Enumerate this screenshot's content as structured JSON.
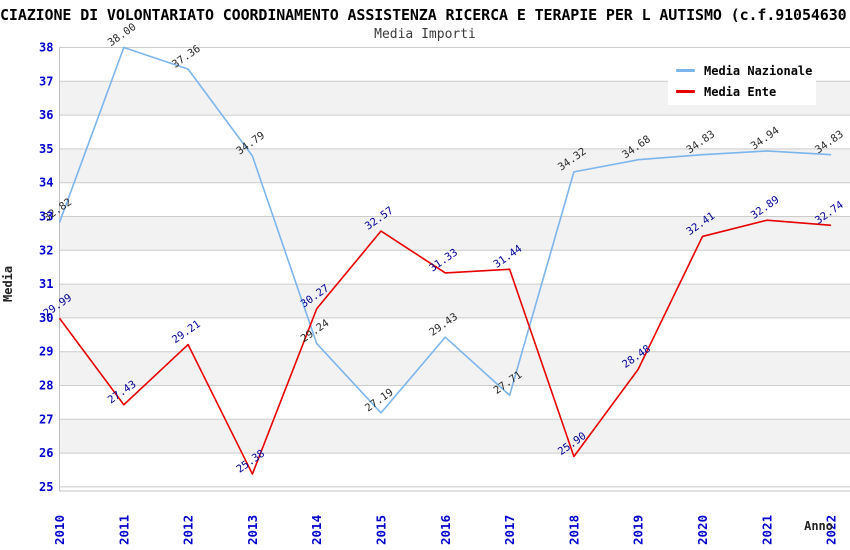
{
  "title": "CIAZIONE DI VOLONTARIATO COORDINAMENTO ASSISTENZA RICERCA E TERAPIE PER L AUTISMO (c.f.91054630",
  "subtitle": "Media Importi",
  "axes": {
    "ylabel": "Media",
    "xlabel": "Anno"
  },
  "colors": {
    "tick_label": "#0000cc",
    "gridline": "#cccccc",
    "band_gray": "#f2f2f2",
    "axis_line": "#c0c0c0"
  },
  "chart_data": {
    "type": "line",
    "title": "Media Importi",
    "xlabel": "Anno",
    "ylabel": "Media",
    "x": [
      2010,
      2011,
      2012,
      2013,
      2014,
      2015,
      2016,
      2017,
      2018,
      2019,
      2020,
      2021,
      2022
    ],
    "ylim": [
      25,
      38
    ],
    "ytick_step": 1,
    "grid": true,
    "banded_background": true,
    "legend_position": "top-right",
    "series": [
      {
        "name": "Media Nazionale",
        "color": "#7cb5ec",
        "label_color": "#2b2b2b",
        "values": [
          32.82,
          38.0,
          37.36,
          34.79,
          29.24,
          27.19,
          29.43,
          27.71,
          34.32,
          34.68,
          34.83,
          34.94,
          34.83
        ]
      },
      {
        "name": "Media Ente",
        "color": "#e60000",
        "label_color": "#000099",
        "values": [
          29.99,
          27.43,
          29.21,
          25.38,
          30.27,
          32.57,
          31.33,
          31.44,
          25.9,
          28.48,
          32.41,
          32.89,
          32.74
        ]
      }
    ]
  }
}
